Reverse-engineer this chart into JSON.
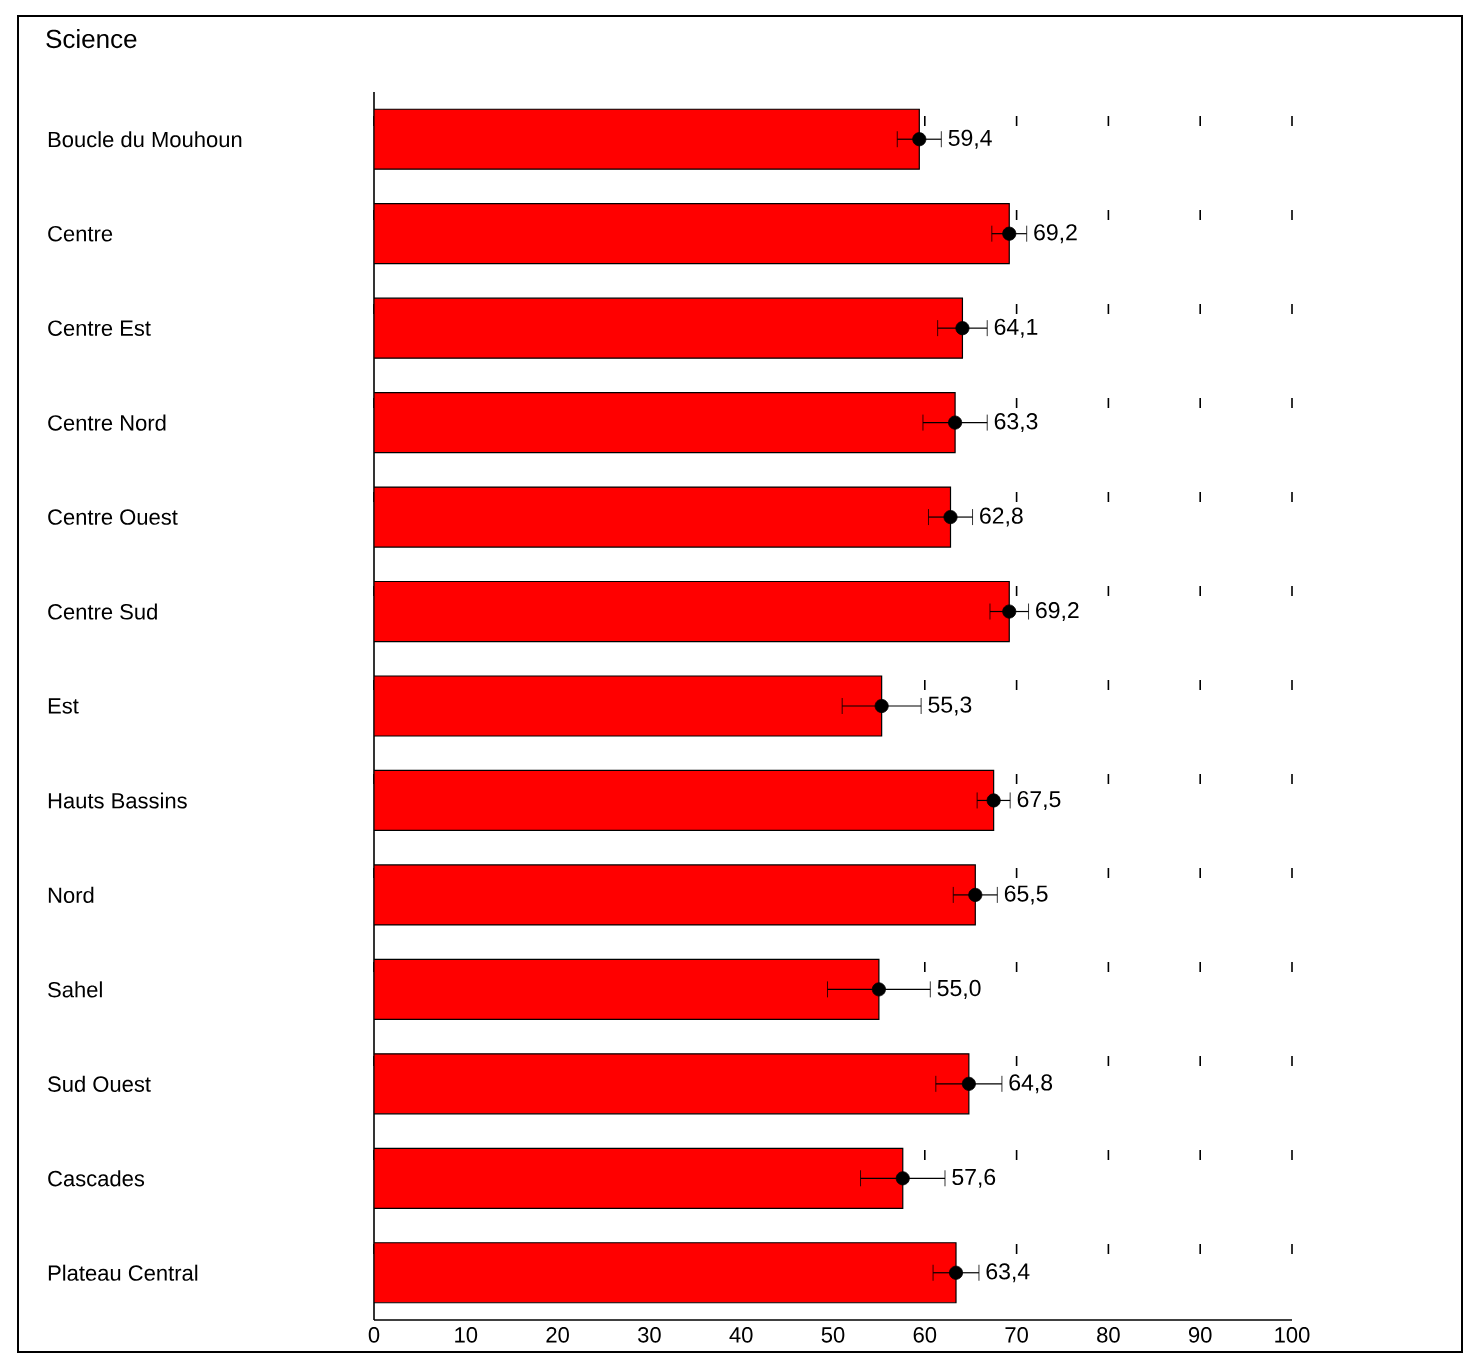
{
  "chart_data": {
    "type": "bar",
    "orientation": "horizontal",
    "title": "Science",
    "categories": [
      "Boucle du Mouhoun",
      "Centre",
      "Centre Est",
      "Centre Nord",
      "Centre Ouest",
      "Centre Sud",
      "Est",
      "Hauts Bassins",
      "Nord",
      "Sahel",
      "Sud Ouest",
      "Cascades",
      "Plateau Central"
    ],
    "series": [
      {
        "color": "#ff0000",
        "values": [
          59.4,
          69.2,
          64.1,
          63.3,
          62.8,
          69.2,
          55.3,
          67.5,
          65.5,
          55.0,
          64.8,
          57.6,
          63.4
        ],
        "errors": [
          2.4,
          1.9,
          2.7,
          3.5,
          2.4,
          2.1,
          4.3,
          1.8,
          2.4,
          5.6,
          3.6,
          4.6,
          2.5
        ],
        "value_labels": [
          "59,4",
          "69,2",
          "64,1",
          "63,3",
          "62,8",
          "69,2",
          "55,3",
          "67,5",
          "65,5",
          "55,0",
          "64,8",
          "57,6",
          "63,4"
        ]
      },
      {
        "type": "scatter",
        "color": "#000000",
        "marker": "circle",
        "x": [
          "Boucle du Mouhoun",
          "Centre",
          "Centre Est",
          "Centre Nord",
          "Centre Ouest",
          "Centre Sud",
          "Est",
          "Hauts Bassins",
          "Nord",
          "Sahel",
          "Sud Ouest",
          "Cascades",
          "Plateau Central"
        ],
        "values": [
          59.4,
          69.2,
          64.1,
          63.3,
          62.8,
          69.2,
          55.3,
          67.5,
          65.5,
          55.0,
          64.8,
          57.6,
          63.4
        ]
      }
    ],
    "grid": "x",
    "xlim": [
      0,
      100
    ],
    "xticks": [
      0,
      10,
      20,
      30,
      40,
      50,
      60,
      70,
      80,
      90,
      100
    ]
  }
}
